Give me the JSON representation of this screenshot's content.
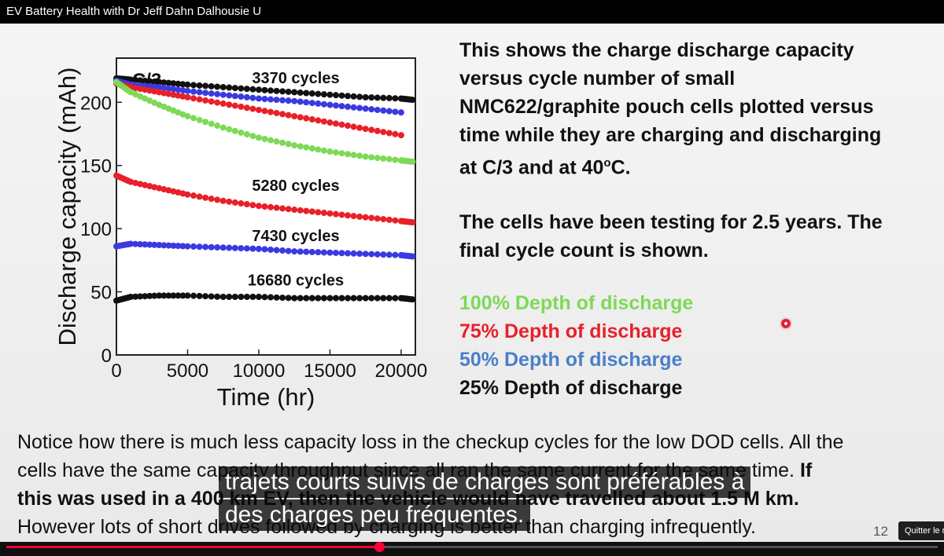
{
  "window": {
    "title": "EV Battery Health with Dr Jeff Dahn Dalhousie U"
  },
  "description": {
    "paragraph1": [
      "This shows the charge discharge capacity",
      "versus cycle number of small",
      "NMC622/graphite pouch cells plotted versus",
      "time while they are charging and discharging"
    ],
    "paragraph1_last_prefix": "at C/3 and at 40",
    "paragraph1_last_sup": "o",
    "paragraph1_last_suffix": "C.",
    "paragraph2": [
      "The cells have been testing for 2.5 years.  The",
      "final cycle count is shown."
    ]
  },
  "legend": [
    {
      "label": "100% Depth of discharge",
      "color": "#7ed957"
    },
    {
      "label": "75% Depth of discharge",
      "color": "#e8202a"
    },
    {
      "label": "50% Depth of discharge",
      "color": "#4a7fc8"
    },
    {
      "label": "25% Depth of discharge",
      "color": "#111111"
    }
  ],
  "bottom_text": {
    "line1": "Notice how there is much less capacity loss in the checkup cycles for the low DOD cells.  All the",
    "line2_plain": "cells have the same capacity throughput since all ran the same current for the same time.  ",
    "line2_bold": "If",
    "line3_bold": "this was used in a 400 km EV, then the vehicle would have travelled about 1.5 M km.",
    "line4": "However lots of short drives followed by charging is better than charging infrequently."
  },
  "captions": [
    "trajets courts suivis de charges sont préférables à",
    "des charges peu fréquentes."
  ],
  "slide_number": "12",
  "controls": {
    "quit_label": "Quitter le m",
    "progress_fraction": 0.4
  },
  "chart_data": {
    "type": "scatter",
    "panel_label": "C/3",
    "xlabel": "Time (hr)",
    "ylabel": "Discharge capacity (mAh)",
    "xlim": [
      0,
      21000
    ],
    "ylim": [
      0,
      235
    ],
    "xticks": [
      0,
      5000,
      10000,
      15000,
      20000
    ],
    "yticks": [
      0,
      50,
      100,
      150,
      200
    ],
    "annotations": [
      {
        "text": "3370 cycles",
        "x": 12600,
        "y": 215
      },
      {
        "text": "5280 cycles",
        "x": 12600,
        "y": 130
      },
      {
        "text": "7430 cycles",
        "x": 12600,
        "y": 90
      },
      {
        "text": "16680 cycles",
        "x": 12600,
        "y": 55
      }
    ],
    "series": [
      {
        "color": "#111111",
        "x": [
          0,
          1000,
          3000,
          5000,
          7500,
          10000,
          12500,
          15000,
          17500,
          20000,
          20800
        ],
        "y": [
          219,
          218,
          216,
          214,
          212,
          210,
          208,
          206,
          204,
          203,
          202
        ]
      },
      {
        "color": "#3a3ae0",
        "x": [
          0,
          1000,
          3000,
          5000,
          7500,
          10000,
          12500,
          15000,
          17500,
          20000
        ],
        "y": [
          217,
          214,
          212,
          209,
          206,
          203,
          201,
          198,
          195,
          192
        ]
      },
      {
        "color": "#e8202a",
        "x": [
          0,
          1000,
          3000,
          5000,
          7500,
          10000,
          12500,
          15000,
          17500,
          20000
        ],
        "y": [
          215,
          212,
          208,
          204,
          199,
          194,
          189,
          184,
          179,
          174
        ]
      },
      {
        "color": "#7ed957",
        "x": [
          0,
          1000,
          3000,
          5000,
          7500,
          10000,
          12500,
          15000,
          17500,
          20000,
          20800
        ],
        "y": [
          216,
          208,
          198,
          189,
          180,
          172,
          166,
          161,
          157,
          154,
          153
        ]
      },
      {
        "color": "#e8202a",
        "x": [
          0,
          1000,
          3000,
          5000,
          7500,
          10000,
          12500,
          15000,
          17500,
          20000,
          20800
        ],
        "y": [
          142,
          137,
          132,
          127,
          122,
          118,
          115,
          112,
          109,
          106,
          105
        ]
      },
      {
        "color": "#3a3ae0",
        "x": [
          0,
          1000,
          3000,
          5000,
          7500,
          10000,
          12500,
          15000,
          17500,
          20000,
          20800
        ],
        "y": [
          86,
          88,
          87,
          86,
          85,
          84,
          82,
          81,
          80,
          79,
          78
        ]
      },
      {
        "color": "#111111",
        "x": [
          0,
          1000,
          3000,
          5000,
          7500,
          10000,
          12500,
          15000,
          17500,
          20000,
          20800
        ],
        "y": [
          43,
          46,
          47,
          47,
          46,
          46,
          45,
          45,
          45,
          45,
          44
        ]
      }
    ]
  }
}
